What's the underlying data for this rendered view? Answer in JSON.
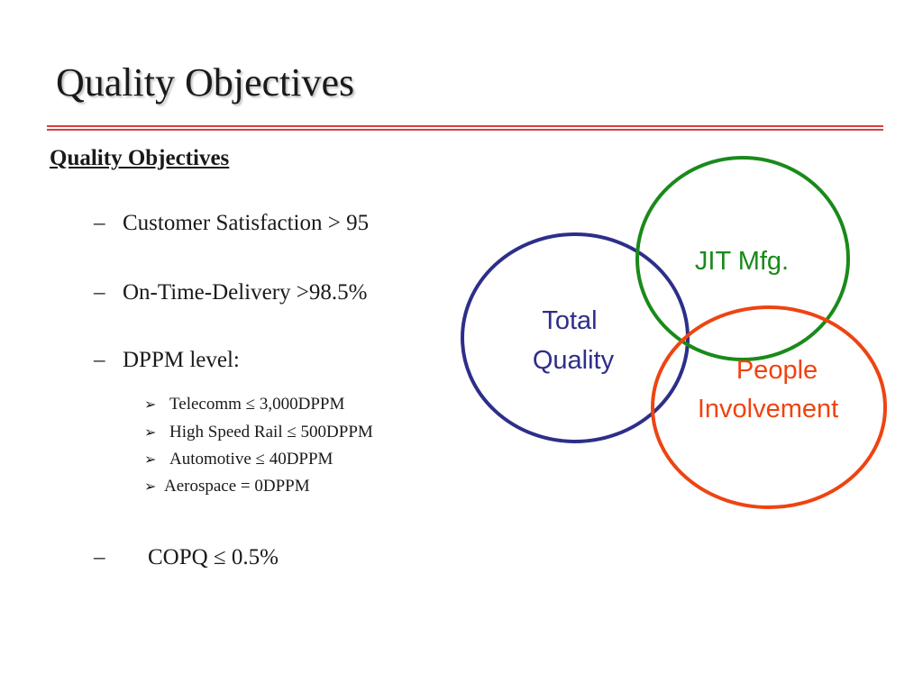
{
  "slide": {
    "title": "Quality Objectives",
    "section_heading": "Quality Objectives",
    "bullets": [
      {
        "dash": "–",
        "text": "Customer Satisfaction > 95"
      },
      {
        "dash": "–",
        "text": "On-Time-Delivery  >98.5%"
      },
      {
        "dash": "–",
        "text": "DPPM level:"
      }
    ],
    "dppm_items": [
      {
        "marker": "➢",
        "text": "Telecomm ≤ 3,000DPPM"
      },
      {
        "marker": "➢",
        "text": "High Speed Rail ≤ 500DPPM"
      },
      {
        "marker": "➢",
        "text": "Automotive ≤ 40DPPM"
      },
      {
        "marker": "➢",
        "text": "Aerospace  = 0DPPM"
      }
    ],
    "last_bullet": {
      "dash": "–",
      "text": "COPQ ≤ 0.5%"
    }
  },
  "diagram": {
    "circles": [
      {
        "id": "total-quality",
        "lines": [
          "Total",
          "Quality"
        ],
        "color": "#2e2e8a"
      },
      {
        "id": "jit-mfg",
        "lines": [
          "JIT Mfg."
        ],
        "color": "#1a8a1a"
      },
      {
        "id": "people-involvement",
        "lines": [
          "People",
          "Involvement"
        ],
        "color": "#ee4411"
      }
    ]
  },
  "colors": {
    "divider": "#d94040",
    "text": "#1a1a1a"
  }
}
